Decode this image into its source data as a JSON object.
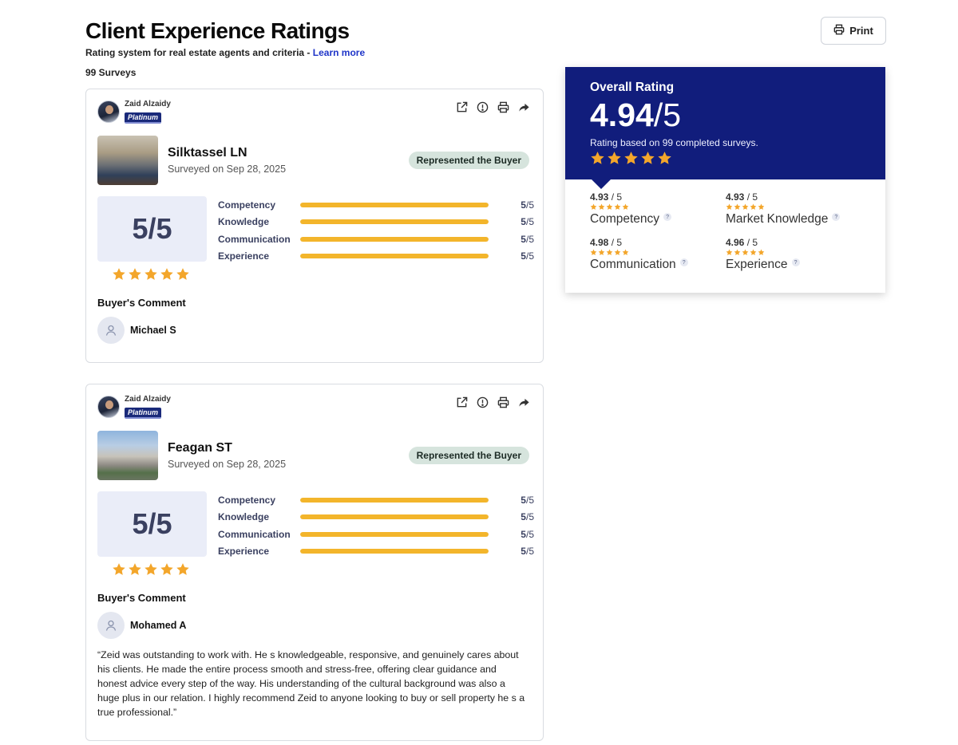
{
  "header": {
    "title": "Client Experience Ratings",
    "subtitle": "Rating system for real estate agents and criteria - ",
    "learn_more": "Learn more",
    "survey_count": "99 Surveys",
    "print_label": "Print"
  },
  "overall": {
    "label": "Overall Rating",
    "score": "4.94",
    "out_of": "/5",
    "note": "Rating based on 99 completed surveys.",
    "stars_value": 4.94,
    "categories": [
      {
        "score": "4.93",
        "suffix": " / 5",
        "name": "Competency",
        "stars_value": 4.93
      },
      {
        "score": "4.93",
        "suffix": " / 5",
        "name": "Market Knowledge",
        "stars_value": 4.93
      },
      {
        "score": "4.98",
        "suffix": " / 5",
        "name": "Communication",
        "stars_value": 4.98
      },
      {
        "score": "4.96",
        "suffix": " / 5",
        "name": "Experience",
        "stars_value": 4.96
      }
    ]
  },
  "reviews": [
    {
      "agent_name": "Zaid Alzaidy",
      "agent_tier": "Platinum",
      "property": "Silktassel LN",
      "surveyed": "Surveyed on Sep 28, 2025",
      "represented": "Represented the Buyer",
      "score": "5/5",
      "stars_value": 5,
      "criteria": [
        {
          "label": "Competency",
          "value": "5",
          "max": "/5",
          "fraction": 1.0
        },
        {
          "label": "Knowledge",
          "value": "5",
          "max": "/5",
          "fraction": 1.0
        },
        {
          "label": "Communication",
          "value": "5",
          "max": "/5",
          "fraction": 1.0
        },
        {
          "label": "Experience",
          "value": "5",
          "max": "/5",
          "fraction": 1.0
        }
      ],
      "comment_heading": "Buyer's Comment",
      "reviewer": "Michael S",
      "comment": ""
    },
    {
      "agent_name": "Zaid Alzaidy",
      "agent_tier": "Platinum",
      "property": "Feagan ST",
      "surveyed": "Surveyed on Sep 28, 2025",
      "represented": "Represented the Buyer",
      "score": "5/5",
      "stars_value": 5,
      "criteria": [
        {
          "label": "Competency",
          "value": "5",
          "max": "/5",
          "fraction": 1.0
        },
        {
          "label": "Knowledge",
          "value": "5",
          "max": "/5",
          "fraction": 1.0
        },
        {
          "label": "Communication",
          "value": "5",
          "max": "/5",
          "fraction": 1.0
        },
        {
          "label": "Experience",
          "value": "5",
          "max": "/5",
          "fraction": 1.0
        }
      ],
      "comment_heading": "Buyer's Comment",
      "reviewer": "Mohamed A",
      "comment": "“Zeid was outstanding to work with. He s knowledgeable, responsive, and genuinely cares about his clients. He made the entire process smooth and stress-free, offering clear guidance and honest advice every step of the way. His understanding of the cultural background was also a huge plus in our relation. I highly recommend Zeid to anyone looking to buy or sell property he s a true professional.”"
    }
  ],
  "colors": {
    "brand_navy": "#111d7c",
    "star": "#f3a62b",
    "bar_fill": "#f3b52b",
    "link": "#1f35c8",
    "badge_bg": "#d6e4dd"
  },
  "icons": [
    "printer-icon",
    "external-link-icon",
    "info-icon",
    "share-icon",
    "user-icon",
    "star-icon",
    "help-icon"
  ]
}
